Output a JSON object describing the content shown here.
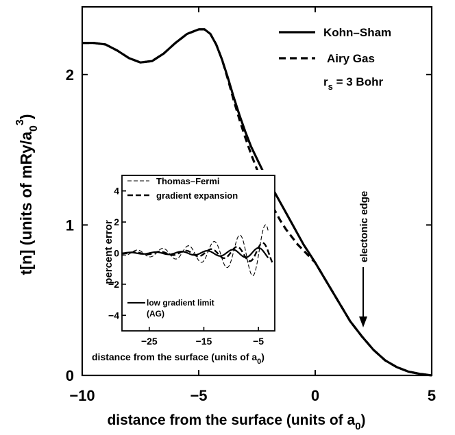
{
  "chart_data": [
    {
      "type": "line",
      "title": "",
      "xlabel": "distance from the surface (units of a",
      "xlabel_sub": "0",
      "xlabel_close": ")",
      "ylabel": "t[n] (units of mRy/a",
      "ylabel_sub": "0",
      "ylabel_sup": "3",
      "ylabel_close": ")",
      "xlim": [
        -10,
        5
      ],
      "ylim": [
        0,
        2.45
      ],
      "xticks": [
        -10,
        -5,
        0,
        5
      ],
      "xtick_labels": [
        "−10",
        "−5",
        "0",
        "5"
      ],
      "yticks": [
        0,
        1,
        2
      ],
      "ytick_labels": [
        "0",
        "1",
        "2"
      ],
      "legend": {
        "position": "top-right",
        "entries": [
          {
            "label": "Kohn–Sham",
            "style": "solid"
          },
          {
            "label": "Airy Gas",
            "style": "dashed"
          }
        ],
        "rs_label": "r",
        "rs_sub": "s",
        "rs_value": " = 3  Bohr"
      },
      "annotation": {
        "text": "electonic edge",
        "x": 2
      },
      "series": [
        {
          "name": "Kohn–Sham",
          "style": "solid",
          "x": [
            -10,
            -9.5,
            -9,
            -8.5,
            -8,
            -7.5,
            -7,
            -6.5,
            -6,
            -5.5,
            -5,
            -4.75,
            -4.5,
            -4.25,
            -4,
            -3.75,
            -3.5,
            -3.25,
            -3,
            -2.75,
            -2.5,
            -2.25,
            -2,
            -1.75,
            -1.5,
            -1.25,
            -1,
            -0.75,
            -0.5,
            -0.25,
            0,
            0.5,
            1,
            1.5,
            2,
            2.5,
            3,
            3.5,
            4,
            4.5,
            5
          ],
          "values": [
            2.21,
            2.21,
            2.2,
            2.16,
            2.11,
            2.08,
            2.09,
            2.14,
            2.21,
            2.27,
            2.3,
            2.3,
            2.27,
            2.2,
            2.1,
            1.98,
            1.85,
            1.73,
            1.62,
            1.52,
            1.44,
            1.36,
            1.29,
            1.22,
            1.15,
            1.08,
            1.01,
            0.94,
            0.87,
            0.81,
            0.75,
            0.62,
            0.49,
            0.36,
            0.26,
            0.17,
            0.1,
            0.055,
            0.025,
            0.01,
            0.0
          ]
        },
        {
          "name": "Airy Gas",
          "style": "dashed",
          "x": [
            -10,
            -9.5,
            -9,
            -8.5,
            -8,
            -7.5,
            -7,
            -6.5,
            -6,
            -5.5,
            -5,
            -4.75,
            -4.5,
            -4.25,
            -4,
            -3.75,
            -3.5,
            -3.25,
            -3,
            -2.75,
            -2.5,
            -2.25,
            -2,
            -1.75,
            -1.5,
            -1.25,
            -1,
            -0.75,
            -0.5,
            -0.25,
            0,
            0.5,
            1,
            1.5,
            2,
            2.5,
            3,
            3.5,
            4,
            4.5,
            5
          ],
          "values": [
            2.21,
            2.21,
            2.2,
            2.16,
            2.11,
            2.08,
            2.09,
            2.14,
            2.21,
            2.27,
            2.3,
            2.3,
            2.27,
            2.2,
            2.1,
            1.97,
            1.83,
            1.7,
            1.58,
            1.47,
            1.37,
            1.28,
            1.19,
            1.1,
            1.03,
            0.97,
            0.92,
            0.87,
            0.83,
            0.79,
            0.75,
            0.62,
            0.49,
            0.36,
            0.26,
            0.17,
            0.1,
            0.055,
            0.025,
            0.01,
            0.0
          ]
        }
      ]
    },
    {
      "type": "line",
      "title": "",
      "xlabel": "distance from the surface (units of a",
      "xlabel_sub": "0",
      "xlabel_close": ")",
      "ylabel": "percent error",
      "xlim": [
        -30,
        -2
      ],
      "ylim": [
        -5,
        5
      ],
      "xticks": [
        -25,
        -15,
        -5
      ],
      "xtick_labels": [
        "−25",
        "−15",
        "−5"
      ],
      "yticks": [
        -4,
        -2,
        0,
        2,
        4
      ],
      "ytick_labels": [
        "−4",
        "−2",
        "0",
        "2",
        "4"
      ],
      "legend_entries": [
        "Thomas–Fermi",
        "gradient expansion"
      ],
      "bottom_legend": [
        "low gradient limit",
        "(AG)"
      ],
      "series": [
        {
          "name": "Thomas–Fermi",
          "style": "thin-dashed",
          "model": {
            "kind": "osc",
            "start": -30,
            "end": -3.2,
            "amp0": 0.15,
            "growth": 0.095,
            "period": 4.7,
            "phase": 0.3
          }
        },
        {
          "name": "gradient expansion",
          "style": "thick-dashed",
          "model": {
            "kind": "osc",
            "start": -30,
            "end": -2.4,
            "amp0": 0.05,
            "growth": 0.1,
            "period": 4.7,
            "phase": 1.0
          }
        },
        {
          "name": "low gradient limit (AG)",
          "style": "solid",
          "model": {
            "kind": "osc",
            "start": -30,
            "end": -3.2,
            "amp0": 0.04,
            "growth": 0.085,
            "period": 4.7,
            "phase": 2.0
          }
        }
      ]
    }
  ]
}
